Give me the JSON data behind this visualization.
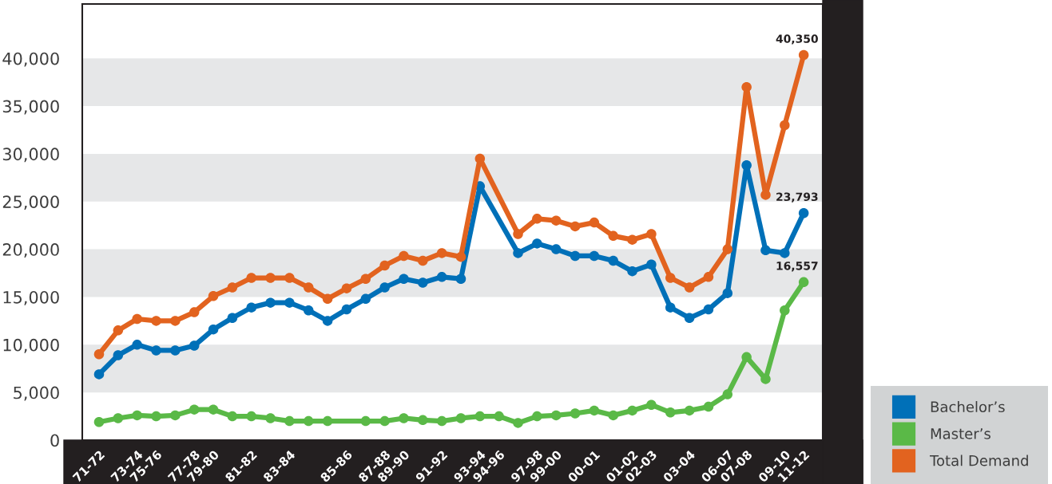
{
  "chart_data": {
    "type": "line",
    "ylim": [
      0,
      45700
    ],
    "categories": [
      "71-72",
      null,
      "73-74",
      "75-76",
      null,
      "77-78",
      "79-80",
      null,
      "81-82",
      null,
      "83-84",
      null,
      null,
      "85-86",
      null,
      "87-88",
      "89-90",
      null,
      "91-92",
      null,
      "93-94",
      "94-96",
      null,
      "97-98",
      "99-00",
      null,
      "00-01",
      null,
      "01-02",
      "02-03",
      null,
      "03-04",
      null,
      "06-07",
      "07-08",
      null,
      "09-10",
      "11-12"
    ],
    "yticks": [
      {
        "value": 0,
        "label": "0"
      },
      {
        "value": 5000,
        "label": "5,000"
      },
      {
        "value": 10000,
        "label": "10,000"
      },
      {
        "value": 15000,
        "label": "15,000"
      },
      {
        "value": 20000,
        "label": "20,000"
      },
      {
        "value": 25000,
        "label": "25,000"
      },
      {
        "value": 30000,
        "label": "30,000"
      },
      {
        "value": 35000,
        "label": "35,000"
      },
      {
        "value": 40000,
        "label": "40,000"
      }
    ],
    "bands": [
      {
        "axis": "y",
        "from": 5000,
        "to": 10000,
        "color": "#e6e7e8"
      },
      {
        "axis": "y",
        "from": 15000,
        "to": 20000,
        "color": "#e6e7e8"
      },
      {
        "axis": "y",
        "from": 25000,
        "to": 30000,
        "color": "#e6e7e8"
      },
      {
        "axis": "y",
        "from": 35000,
        "to": 40000,
        "color": "#e6e7e8"
      }
    ],
    "legend": "bottom right",
    "marker": "circle",
    "line_style": "solid",
    "series": [
      {
        "name": "Bachelor’s",
        "color": "#0070b8",
        "values": [
          6900,
          8900,
          10000,
          9400,
          9400,
          9900,
          11600,
          12800,
          13900,
          14400,
          14400,
          13600,
          12500,
          13700,
          14800,
          16000,
          16900,
          16500,
          17100,
          16900,
          26600,
          null,
          19600,
          20600,
          20000,
          19300,
          19300,
          18800,
          17700,
          18400,
          13900,
          12800,
          13700,
          15400,
          28800,
          19900,
          19600,
          23793
        ],
        "value_labels": [
          null,
          null,
          null,
          null,
          null,
          null,
          null,
          null,
          null,
          null,
          null,
          null,
          null,
          null,
          null,
          null,
          null,
          null,
          null,
          null,
          null,
          null,
          null,
          null,
          null,
          null,
          null,
          null,
          null,
          null,
          null,
          null,
          null,
          null,
          null,
          null,
          null,
          "23,793"
        ]
      },
      {
        "name": "Master’s",
        "color": "#5ab947",
        "values": [
          1900,
          2300,
          2600,
          2500,
          2600,
          3200,
          3200,
          2500,
          2500,
          2300,
          2000,
          2000,
          2000,
          null,
          2000,
          2000,
          2300,
          2100,
          2000,
          2300,
          2500,
          2500,
          1800,
          2500,
          2600,
          2800,
          3100,
          2600,
          3100,
          3700,
          2900,
          3100,
          3500,
          4800,
          8700,
          6400,
          13600,
          16557
        ],
        "value_labels": [
          null,
          null,
          null,
          null,
          null,
          null,
          null,
          null,
          null,
          null,
          null,
          null,
          null,
          null,
          null,
          null,
          null,
          null,
          null,
          null,
          null,
          null,
          null,
          null,
          null,
          null,
          null,
          null,
          null,
          null,
          null,
          null,
          null,
          null,
          null,
          null,
          null,
          "16,557"
        ]
      },
      {
        "name": "Total Demand",
        "color": "#e2631f",
        "values": [
          9000,
          11500,
          12700,
          12500,
          12500,
          13400,
          15100,
          16000,
          17000,
          17000,
          17000,
          16000,
          14800,
          15900,
          16900,
          18300,
          19300,
          18800,
          19600,
          19200,
          29500,
          null,
          21600,
          23200,
          23000,
          22400,
          22800,
          21400,
          21000,
          21600,
          17000,
          16000,
          17100,
          20000,
          37000,
          25700,
          33000,
          40350
        ],
        "value_labels": [
          null,
          null,
          null,
          null,
          null,
          null,
          null,
          null,
          null,
          null,
          null,
          null,
          null,
          null,
          null,
          null,
          null,
          null,
          null,
          null,
          null,
          null,
          null,
          null,
          null,
          null,
          null,
          null,
          null,
          null,
          null,
          null,
          null,
          null,
          null,
          null,
          null,
          "40,350"
        ]
      }
    ]
  }
}
